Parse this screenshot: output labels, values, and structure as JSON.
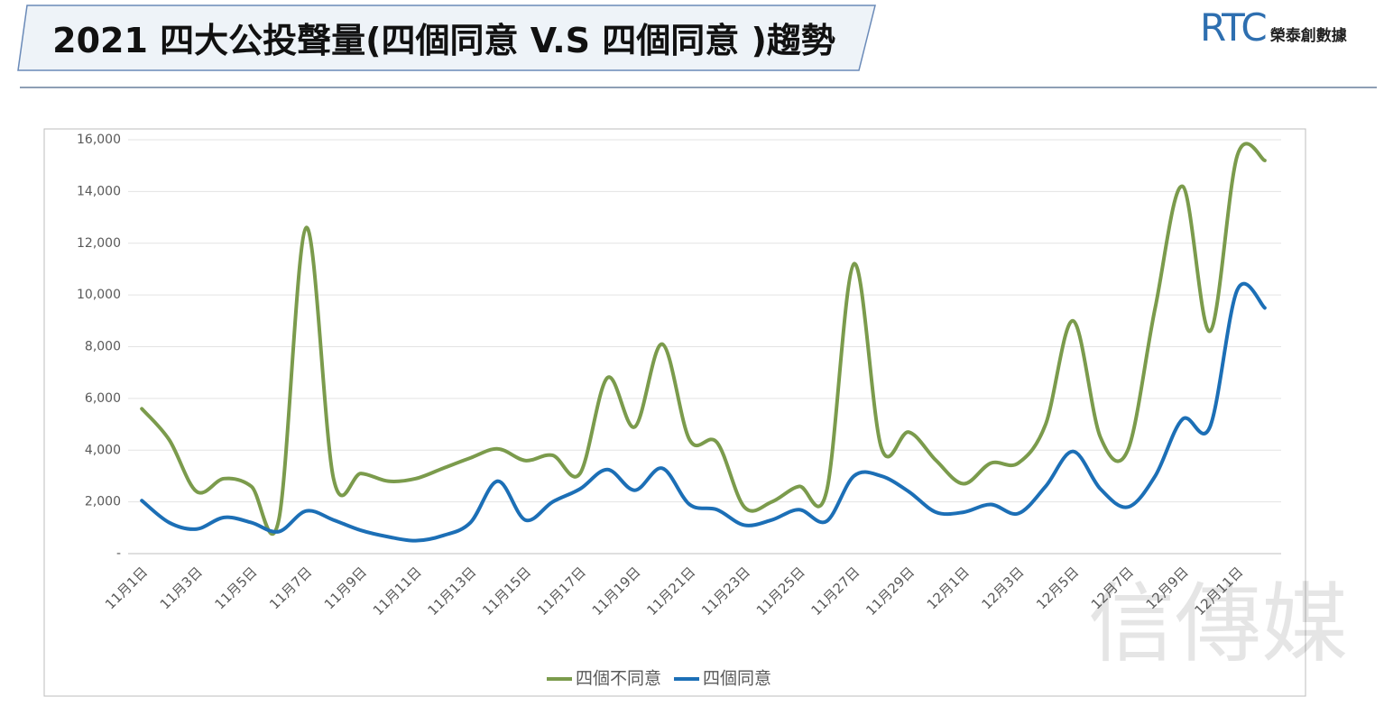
{
  "title": "2021 四大公投聲量(四個同意 V.S 四個同意 )趨勢",
  "logo": {
    "mark": "RTC",
    "name": "榮泰創數據"
  },
  "watermark": "信傳媒",
  "chart_data": {
    "type": "line",
    "categories": [
      "11月1日",
      null,
      "11月3日",
      null,
      "11月5日",
      null,
      "11月7日",
      null,
      "11月9日",
      null,
      "11月11日",
      null,
      "11月13日",
      null,
      "11月15日",
      null,
      "11月17日",
      null,
      "11月19日",
      null,
      "11月21日",
      null,
      "11月23日",
      null,
      "11月25日",
      null,
      "11月27日",
      null,
      "11月29日",
      null,
      "12月1日",
      null,
      "12月3日",
      null,
      "12月5日",
      null,
      "12月7日",
      null,
      "12月9日",
      null,
      "12月11日",
      null
    ],
    "series": [
      {
        "name": "四個不同意",
        "color": "#7b9b4c",
        "values": [
          5600,
          4400,
          2400,
          2900,
          2600,
          1300,
          12600,
          2900,
          3100,
          2800,
          2900,
          3300,
          3700,
          4050,
          3600,
          3800,
          3100,
          6800,
          4900,
          8100,
          4400,
          4300,
          1800,
          2000,
          2600,
          2400,
          11200,
          4100,
          4700,
          3600,
          2700,
          3500,
          3500,
          5000,
          9000,
          4500,
          4000,
          9500,
          14200,
          8600,
          15400,
          15200
        ]
      },
      {
        "name": "四個同意",
        "color": "#1c6fb6",
        "values": [
          2050,
          1200,
          950,
          1400,
          1200,
          850,
          1650,
          1300,
          900,
          650,
          500,
          700,
          1200,
          2800,
          1300,
          2000,
          2500,
          3250,
          2450,
          3300,
          1900,
          1700,
          1100,
          1300,
          1700,
          1250,
          3000,
          3000,
          2400,
          1600,
          1600,
          1900,
          1550,
          2600,
          3950,
          2500,
          1800,
          3000,
          5200,
          4900,
          10200,
          9500
        ]
      }
    ],
    "ylim": [
      0,
      16000
    ],
    "yticks": [
      {
        "value": 0,
        "label": "-"
      },
      {
        "value": 2000,
        "label": "2,000"
      },
      {
        "value": 4000,
        "label": "4,000"
      },
      {
        "value": 6000,
        "label": "6,000"
      },
      {
        "value": 8000,
        "label": "8,000"
      },
      {
        "value": 10000,
        "label": "10,000"
      },
      {
        "value": 12000,
        "label": "12,000"
      },
      {
        "value": 14000,
        "label": "14,000"
      },
      {
        "value": 16000,
        "label": "16,000"
      }
    ],
    "grid": true,
    "legend": "bottom"
  }
}
